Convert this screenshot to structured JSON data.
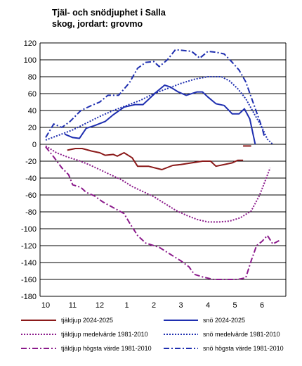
{
  "chart_data": {
    "type": "line",
    "title_line1": "Tjäl- och snödjuphet i Salla",
    "title_line2": "skog, jordart: grovmo",
    "ylim": [
      -180,
      120
    ],
    "y_ticks": [
      120,
      100,
      80,
      60,
      40,
      20,
      0,
      -20,
      -40,
      -60,
      -80,
      -100,
      -120,
      -140,
      -160,
      -180
    ],
    "xlim": [
      0,
      8.4
    ],
    "x_ticks": [
      {
        "label": "10",
        "x": 0
      },
      {
        "label": "11",
        "x": 1
      },
      {
        "label": "12",
        "x": 2
      },
      {
        "label": "1",
        "x": 3
      },
      {
        "label": "2",
        "x": 4
      },
      {
        "label": "3",
        "x": 5
      },
      {
        "label": "4",
        "x": 6
      },
      {
        "label": "5",
        "x": 7
      },
      {
        "label": "6",
        "x": 8
      }
    ],
    "grid": "horizontal",
    "legend_placement": "bottom",
    "series": [
      {
        "name": "tjäldjup 2024-2025",
        "color": "#8b1a1a",
        "style": "solid",
        "width": 2,
        "points": [
          [
            0.8,
            -7
          ],
          [
            1.1,
            -5
          ],
          [
            1.35,
            -5
          ],
          [
            1.7,
            -8
          ],
          [
            2.0,
            -10
          ],
          [
            2.2,
            -13
          ],
          [
            2.5,
            -12
          ],
          [
            2.65,
            -14
          ],
          [
            2.9,
            -10
          ],
          [
            3.2,
            -16
          ],
          [
            3.4,
            -26
          ],
          [
            3.8,
            -26
          ],
          [
            4.3,
            -30
          ],
          [
            4.7,
            -25
          ],
          [
            5.0,
            -24
          ],
          [
            5.4,
            -22
          ],
          [
            5.8,
            -20
          ],
          [
            6.1,
            -20
          ],
          [
            6.3,
            -26
          ],
          [
            6.9,
            -22
          ],
          [
            7.1,
            -19
          ],
          [
            7.3,
            -19
          ]
        ]
      },
      {
        "name": "tjäldjup 2024-2025",
        "color": "#8b1a1a",
        "style": "solid",
        "width": 2,
        "points": [
          [
            7.3,
            -2
          ],
          [
            7.6,
            -2
          ]
        ]
      },
      {
        "name": "snö 2024-2025",
        "color": "#1f2fb0",
        "style": "solid",
        "width": 2,
        "points": [
          [
            0.7,
            12
          ],
          [
            1.0,
            8
          ],
          [
            1.25,
            7
          ],
          [
            1.5,
            19
          ],
          [
            1.8,
            22
          ],
          [
            2.2,
            27
          ],
          [
            2.5,
            35
          ],
          [
            2.9,
            44
          ],
          [
            3.3,
            47
          ],
          [
            3.6,
            47
          ],
          [
            4.1,
            62
          ],
          [
            4.4,
            70
          ],
          [
            4.6,
            68
          ],
          [
            4.9,
            62
          ],
          [
            5.2,
            58
          ],
          [
            5.6,
            62
          ],
          [
            5.8,
            62
          ],
          [
            6.0,
            56
          ],
          [
            6.3,
            48
          ],
          [
            6.6,
            46
          ],
          [
            6.9,
            36
          ],
          [
            7.15,
            36
          ],
          [
            7.35,
            42
          ],
          [
            7.55,
            30
          ],
          [
            7.75,
            0
          ]
        ]
      },
      {
        "name": "tjäldjup medelvärde 1981-2010",
        "color": "#8b1a8b",
        "style": "dotted",
        "width": 2,
        "points": [
          [
            0,
            -2
          ],
          [
            0.4,
            -10
          ],
          [
            0.8,
            -15
          ],
          [
            1.2,
            -19
          ],
          [
            1.6,
            -24
          ],
          [
            2.0,
            -30
          ],
          [
            2.4,
            -36
          ],
          [
            2.8,
            -42
          ],
          [
            3.2,
            -50
          ],
          [
            3.6,
            -56
          ],
          [
            4.0,
            -62
          ],
          [
            4.4,
            -70
          ],
          [
            4.8,
            -78
          ],
          [
            5.2,
            -84
          ],
          [
            5.6,
            -89
          ],
          [
            6.0,
            -92
          ],
          [
            6.4,
            -92
          ],
          [
            6.8,
            -91
          ],
          [
            7.2,
            -87
          ],
          [
            7.6,
            -79
          ],
          [
            7.9,
            -61
          ],
          [
            8.1,
            -45
          ],
          [
            8.3,
            -28
          ]
        ]
      },
      {
        "name": "snö medelvärde 1981-2010",
        "color": "#1f2fb0",
        "style": "dotted",
        "width": 2,
        "points": [
          [
            0,
            5
          ],
          [
            0.5,
            11
          ],
          [
            1.0,
            17
          ],
          [
            1.5,
            25
          ],
          [
            2.0,
            33
          ],
          [
            2.5,
            40
          ],
          [
            3.0,
            46
          ],
          [
            3.5,
            52
          ],
          [
            4.0,
            60
          ],
          [
            4.5,
            66
          ],
          [
            5.0,
            72
          ],
          [
            5.5,
            77
          ],
          [
            6.0,
            80
          ],
          [
            6.5,
            80
          ],
          [
            6.8,
            75
          ],
          [
            7.1,
            66
          ],
          [
            7.4,
            54
          ],
          [
            7.7,
            37
          ],
          [
            8.0,
            20
          ],
          [
            8.2,
            6
          ],
          [
            8.4,
            0
          ]
        ]
      },
      {
        "name": "tjäldjup högsta värde 1981-2010",
        "color": "#8b1a8b",
        "style": "dashdot",
        "width": 2,
        "points": [
          [
            0,
            -3
          ],
          [
            0.3,
            -15
          ],
          [
            0.6,
            -28
          ],
          [
            0.85,
            -36
          ],
          [
            1.0,
            -48
          ],
          [
            1.3,
            -51
          ],
          [
            1.5,
            -57
          ],
          [
            1.8,
            -61
          ],
          [
            2.1,
            -68
          ],
          [
            2.5,
            -75
          ],
          [
            2.9,
            -82
          ],
          [
            3.1,
            -93
          ],
          [
            3.4,
            -108
          ],
          [
            3.7,
            -117
          ],
          [
            4.2,
            -122
          ],
          [
            4.6,
            -130
          ],
          [
            5.0,
            -138
          ],
          [
            5.3,
            -145
          ],
          [
            5.5,
            -154
          ],
          [
            5.8,
            -157
          ],
          [
            6.2,
            -160
          ],
          [
            6.7,
            -160
          ],
          [
            7.1,
            -160
          ],
          [
            7.4,
            -158
          ],
          [
            7.6,
            -138
          ],
          [
            7.8,
            -120
          ],
          [
            8.0,
            -115
          ],
          [
            8.2,
            -108
          ],
          [
            8.4,
            -118
          ],
          [
            8.7,
            -113
          ]
        ]
      },
      {
        "name": "snö högsta värde 1981-2010",
        "color": "#1f2fb0",
        "style": "dashdot",
        "width": 2,
        "points": [
          [
            0,
            8
          ],
          [
            0.3,
            24
          ],
          [
            0.6,
            20
          ],
          [
            0.9,
            27
          ],
          [
            1.3,
            40
          ],
          [
            1.7,
            46
          ],
          [
            2.0,
            50
          ],
          [
            2.3,
            58
          ],
          [
            2.7,
            58
          ],
          [
            3.1,
            73
          ],
          [
            3.4,
            90
          ],
          [
            3.7,
            97
          ],
          [
            4.0,
            98
          ],
          [
            4.2,
            92
          ],
          [
            4.5,
            100
          ],
          [
            4.8,
            112
          ],
          [
            5.1,
            111
          ],
          [
            5.4,
            110
          ],
          [
            5.7,
            102
          ],
          [
            6.0,
            110
          ],
          [
            6.3,
            109
          ],
          [
            6.6,
            107
          ],
          [
            6.9,
            97
          ],
          [
            7.15,
            88
          ],
          [
            7.4,
            74
          ],
          [
            7.6,
            56
          ],
          [
            7.8,
            38
          ],
          [
            8.0,
            20
          ],
          [
            8.1,
            8
          ]
        ]
      }
    ],
    "legend": [
      {
        "label": "tjäldjup 2024-2025",
        "color": "#8b1a1a",
        "style": "solid"
      },
      {
        "label": "snö 2024-2025",
        "color": "#1f2fb0",
        "style": "solid"
      },
      {
        "label": "tjäldjup medelvärde 1981-2010",
        "color": "#8b1a8b",
        "style": "dotted"
      },
      {
        "label": "snö medelvärde 1981-2010",
        "color": "#1f2fb0",
        "style": "dotted"
      },
      {
        "label": "tjäldjup högsta värde 1981-2010",
        "color": "#8b1a8b",
        "style": "dashdot"
      },
      {
        "label": "snö högsta värde 1981-2010",
        "color": "#1f2fb0",
        "style": "dashdot"
      }
    ]
  }
}
